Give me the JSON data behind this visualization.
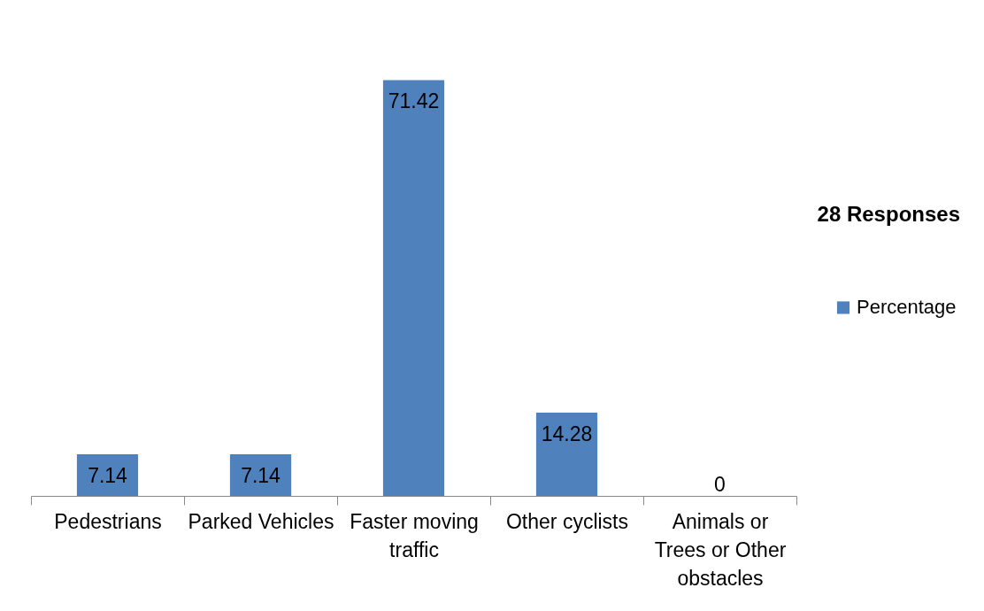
{
  "chart_data": {
    "type": "bar",
    "title": "28 Responses",
    "categories": [
      "Pedestrians",
      "Parked Vehicles",
      "Faster moving traffic",
      "Other cyclists",
      "Animals or Trees or Other obstacles"
    ],
    "series": [
      {
        "name": "Percentage",
        "color": "#4f81bd",
        "values": [
          7.14,
          7.14,
          71.42,
          14.28,
          0
        ]
      }
    ],
    "data_labels": true,
    "legend": "right",
    "tick_labels": "x"
  }
}
